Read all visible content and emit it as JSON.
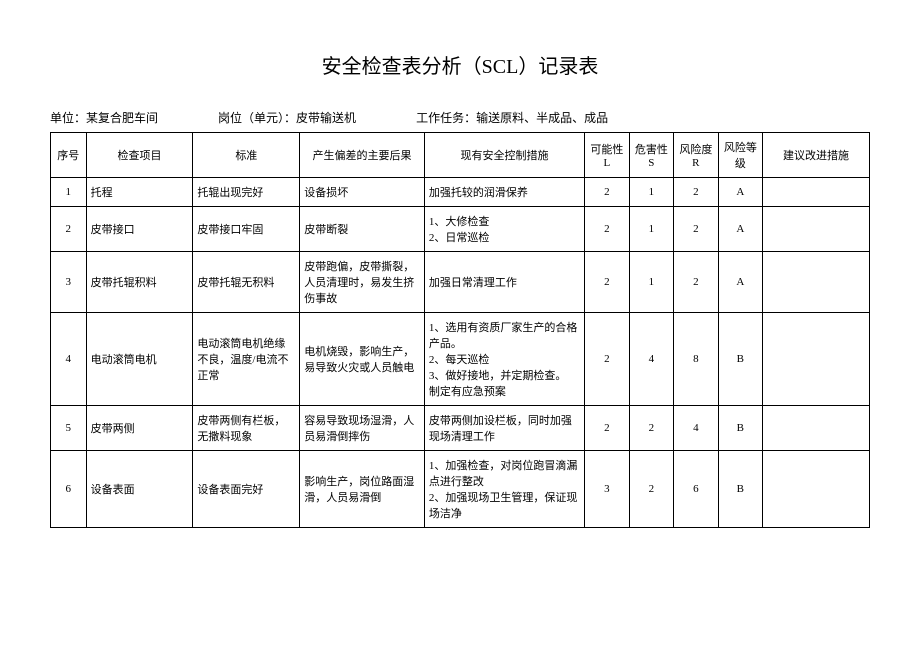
{
  "title": "安全检查表分析（SCL）记录表",
  "meta": {
    "unit_label": "单位：",
    "unit_value": "某复合肥车间",
    "post_label": "岗位（单元）：",
    "post_value": "皮带输送机",
    "task_label": "工作任务：",
    "task_value": "输送原料、半成品、成品"
  },
  "headers": {
    "seq": "序号",
    "item": "检查项目",
    "standard": "标准",
    "consequence": "产生偏差的主要后果",
    "control": "现有安全控制措施",
    "L": "可能性L",
    "S": "危害性S",
    "R": "风险度R",
    "level": "风险等级",
    "suggest": "建议改进措施"
  },
  "rows": [
    {
      "seq": "1",
      "item": "托程",
      "standard": "托辊出现完好",
      "consequence": "设备损坏",
      "control": "加强托较的润滑保养",
      "L": "2",
      "S": "1",
      "R": "2",
      "level": "A",
      "suggest": ""
    },
    {
      "seq": "2",
      "item": "皮带接口",
      "standard": "皮带接口牢固",
      "consequence": "皮带断裂",
      "control": "1、大修检查\n2、日常巡检",
      "L": "2",
      "S": "1",
      "R": "2",
      "level": "A",
      "suggest": ""
    },
    {
      "seq": "3",
      "item": "皮带托辊积料",
      "standard": "皮带托辊无积料",
      "consequence": "皮带跑偏，皮带撕裂，人员清理时，易发生挤伤事故",
      "control": "加强日常清理工作",
      "L": "2",
      "S": "1",
      "R": "2",
      "level": "A",
      "suggest": ""
    },
    {
      "seq": "4",
      "item": "电动滚筒电机",
      "standard": "电动滚筒电机绝缘不良，温度/电流不正常",
      "consequence": "电机烧毁，影响生产，易导致火灾或人员触电",
      "control": "1、选用有资质厂家生产的合格产品。\n2、每天巡检\n3、做好接地，并定期检查。\n制定有应急预案",
      "L": "2",
      "S": "4",
      "R": "8",
      "level": "B",
      "suggest": ""
    },
    {
      "seq": "5",
      "item": "皮带两侧",
      "standard": "皮带两侧有栏板，无撒料现象",
      "consequence": "容易导致现场湿滑，人员易滑倒摔伤",
      "control": "皮带两侧加设栏板，同时加强现场清理工作",
      "L": "2",
      "S": "2",
      "R": "4",
      "level": "B",
      "suggest": ""
    },
    {
      "seq": "6",
      "item": "设备表面",
      "standard": "设备表面完好",
      "consequence": "影响生产，岗位路面湿滑，人员易滑倒",
      "control": "1、加强检查，对岗位跑冒滴漏点进行整改\n2、加强现场卫生管理，保证现场洁净",
      "L": "3",
      "S": "2",
      "R": "6",
      "level": "B",
      "suggest": ""
    }
  ]
}
